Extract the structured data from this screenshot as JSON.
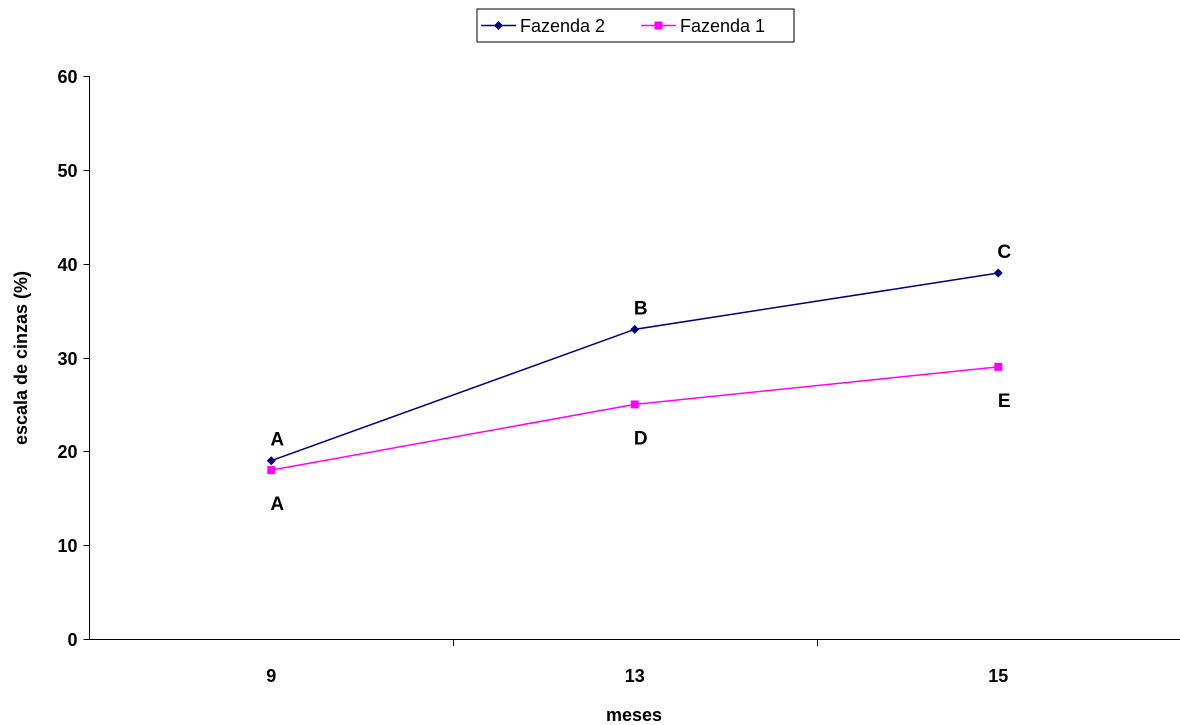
{
  "chart_data": {
    "type": "line",
    "xlabel": "meses",
    "ylabel": "escala de cinzas (%)",
    "categories": [
      "9",
      "13",
      "15"
    ],
    "ylim": [
      0,
      60
    ],
    "yticks": [
      0,
      10,
      20,
      30,
      40,
      50,
      60
    ],
    "grid": false,
    "legend": "top-center",
    "series": [
      {
        "name": "Fazenda 2",
        "color": "#000080",
        "marker": "diamond",
        "values": [
          19,
          33,
          39
        ],
        "point_labels": [
          "A",
          "B",
          "C"
        ],
        "label_side": "above"
      },
      {
        "name": "Fazenda 1",
        "color": "#FF00FF",
        "marker": "square",
        "values": [
          18,
          25,
          29
        ],
        "point_labels": [
          "A",
          "D",
          "E"
        ],
        "label_side": "below"
      }
    ]
  }
}
